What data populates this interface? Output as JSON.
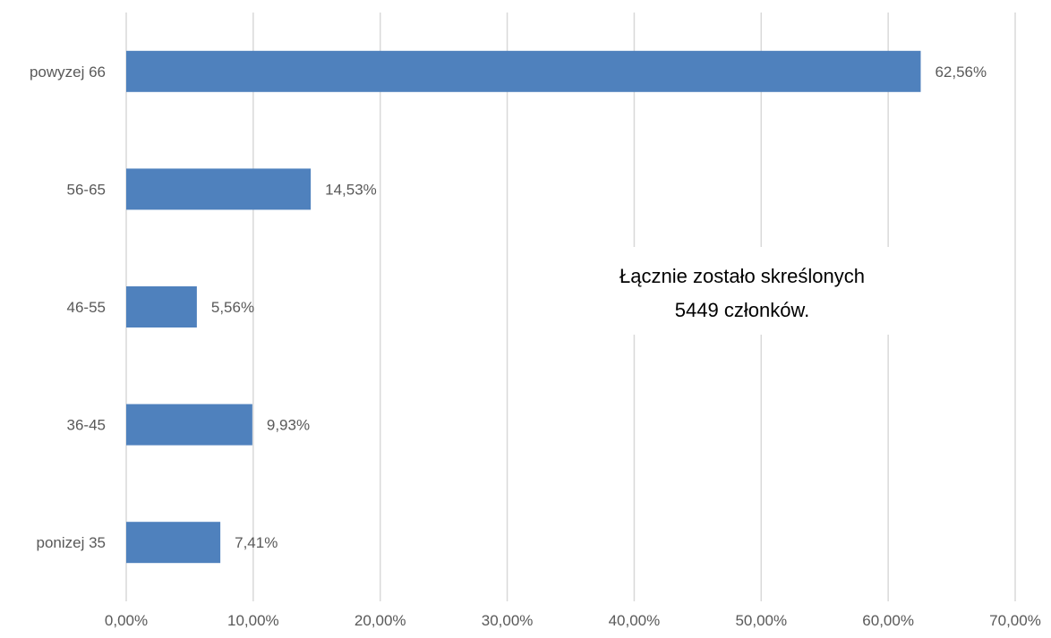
{
  "chart_data": {
    "type": "bar",
    "orientation": "horizontal",
    "categories": [
      "powyzej 66",
      "56-65",
      "46-55",
      "36-45",
      "ponizej 35"
    ],
    "values": [
      62.56,
      14.53,
      5.56,
      9.93,
      7.41
    ],
    "data_labels": [
      "62,56%",
      "14,53%",
      "5,56%",
      "9,93%",
      "7,41%"
    ],
    "xlim": [
      0,
      70
    ],
    "x_ticks": [
      0,
      10,
      20,
      30,
      40,
      50,
      60,
      70
    ],
    "x_tick_labels": [
      "0,00%",
      "10,00%",
      "20,00%",
      "30,00%",
      "40,00%",
      "50,00%",
      "60,00%",
      "70,00%"
    ],
    "grid": "vertical",
    "bar_color": "#4f81bd",
    "annotation": [
      "Łącznie zostało skreślonych",
      "5449 członków."
    ]
  }
}
